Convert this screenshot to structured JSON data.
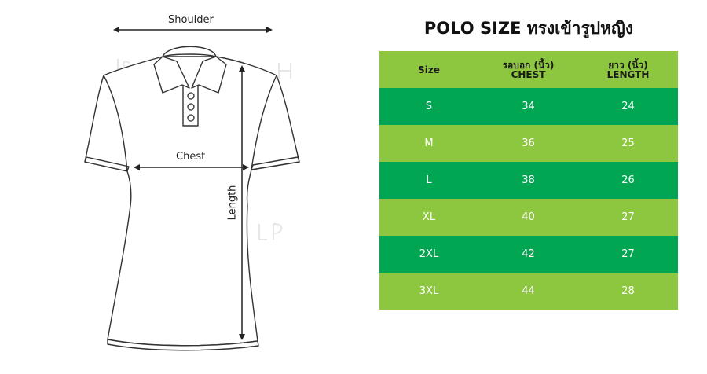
{
  "diagram": {
    "labels": {
      "shoulder": "Shoulder",
      "chest": "Chest",
      "length": "Length"
    }
  },
  "size_chart": {
    "title": "POLO SIZE ทรงเข้ารูปหญิง",
    "headers": [
      {
        "line1": "Size",
        "line2": ""
      },
      {
        "line1": "รอบอก (นิ้ว)",
        "line2": "CHEST"
      },
      {
        "line1": "ยาว (นิ้ว)",
        "line2": "LENGTH"
      }
    ],
    "rows": [
      {
        "size": "S",
        "chest": "34",
        "length": "24"
      },
      {
        "size": "M",
        "chest": "36",
        "length": "25"
      },
      {
        "size": "L",
        "chest": "38",
        "length": "26"
      },
      {
        "size": "XL",
        "chest": "40",
        "length": "27"
      },
      {
        "size": "2XL",
        "chest": "42",
        "length": "27"
      },
      {
        "size": "3XL",
        "chest": "44",
        "length": "28"
      }
    ],
    "colors": {
      "light_green": "#8dc63f",
      "dark_green": "#00a651"
    }
  }
}
